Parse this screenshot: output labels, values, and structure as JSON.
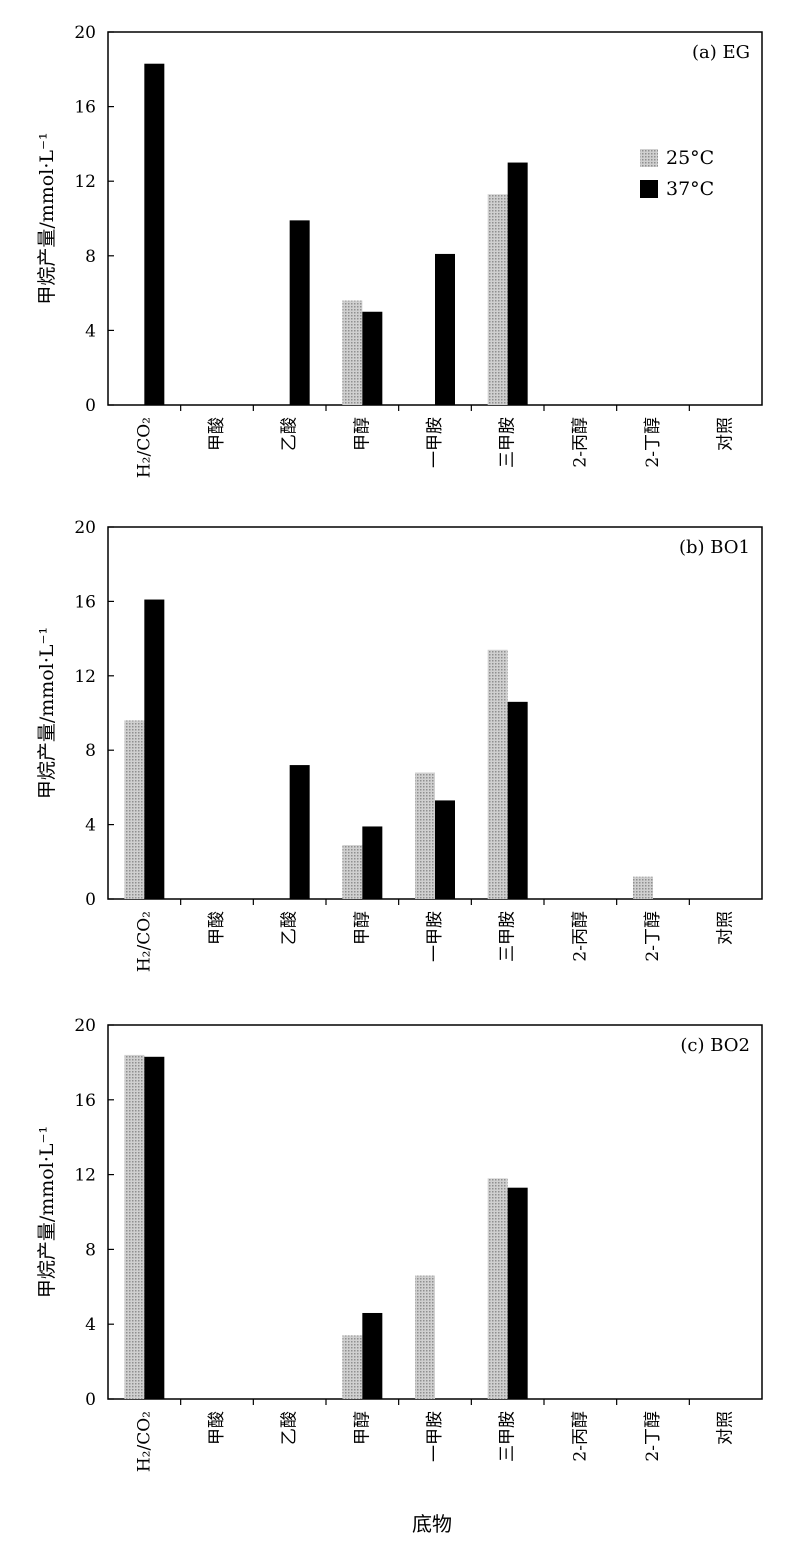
{
  "colors": {
    "s25": "#bdbdbd",
    "s37": "#000000"
  },
  "legend": [
    {
      "key": "s25",
      "label": "25°C"
    },
    {
      "key": "s37",
      "label": "37°C"
    }
  ],
  "xlabel": "底物",
  "chart_data": [
    {
      "type": "bar",
      "title": "(a) EG",
      "ylabel": "甲烷产量/mmol·L⁻¹",
      "ylim": [
        0,
        20
      ],
      "yticks": [
        0,
        4,
        8,
        12,
        16,
        20
      ],
      "categories": [
        "H₂/CO₂",
        "甲酸",
        "乙酸",
        "甲醇",
        "一甲胺",
        "三甲胺",
        "2-丙醇",
        "2-丁醇",
        "对照"
      ],
      "series": [
        {
          "name": "25°C",
          "key": "s25",
          "values": [
            0,
            0,
            0,
            5.6,
            0,
            11.3,
            0,
            0,
            0
          ]
        },
        {
          "name": "37°C",
          "key": "s37",
          "values": [
            18.3,
            0,
            9.9,
            5.0,
            8.1,
            13.0,
            0,
            0,
            0
          ]
        }
      ],
      "legend_position": "upper-right",
      "grid": false
    },
    {
      "type": "bar",
      "title": "(b) BO1",
      "ylabel": "甲烷产量/mmol·L⁻¹",
      "ylim": [
        0,
        20
      ],
      "yticks": [
        0,
        4,
        8,
        12,
        16,
        20
      ],
      "categories": [
        "H₂/CO₂",
        "甲酸",
        "乙酸",
        "甲醇",
        "一甲胺",
        "三甲胺",
        "2-丙醇",
        "2-丁醇",
        "对照"
      ],
      "series": [
        {
          "name": "25°C",
          "key": "s25",
          "values": [
            9.6,
            0,
            0,
            2.9,
            6.8,
            13.4,
            0,
            1.2,
            0
          ]
        },
        {
          "name": "37°C",
          "key": "s37",
          "values": [
            16.1,
            0,
            7.2,
            3.9,
            5.3,
            10.6,
            0,
            0,
            0
          ]
        }
      ],
      "grid": false
    },
    {
      "type": "bar",
      "title": "(c) BO2",
      "ylabel": "甲烷产量/mmol·L⁻¹",
      "ylim": [
        0,
        20
      ],
      "yticks": [
        0,
        4,
        8,
        12,
        16,
        20
      ],
      "categories": [
        "H₂/CO₂",
        "甲酸",
        "乙酸",
        "甲醇",
        "一甲胺",
        "三甲胺",
        "2-丙醇",
        "2-丁醇",
        "对照"
      ],
      "series": [
        {
          "name": "25°C",
          "key": "s25",
          "values": [
            18.4,
            0,
            0,
            3.4,
            6.6,
            11.8,
            0,
            0,
            0
          ]
        },
        {
          "name": "37°C",
          "key": "s37",
          "values": [
            18.3,
            0,
            0,
            4.6,
            0,
            11.3,
            0,
            0,
            0
          ]
        }
      ],
      "grid": false
    }
  ]
}
